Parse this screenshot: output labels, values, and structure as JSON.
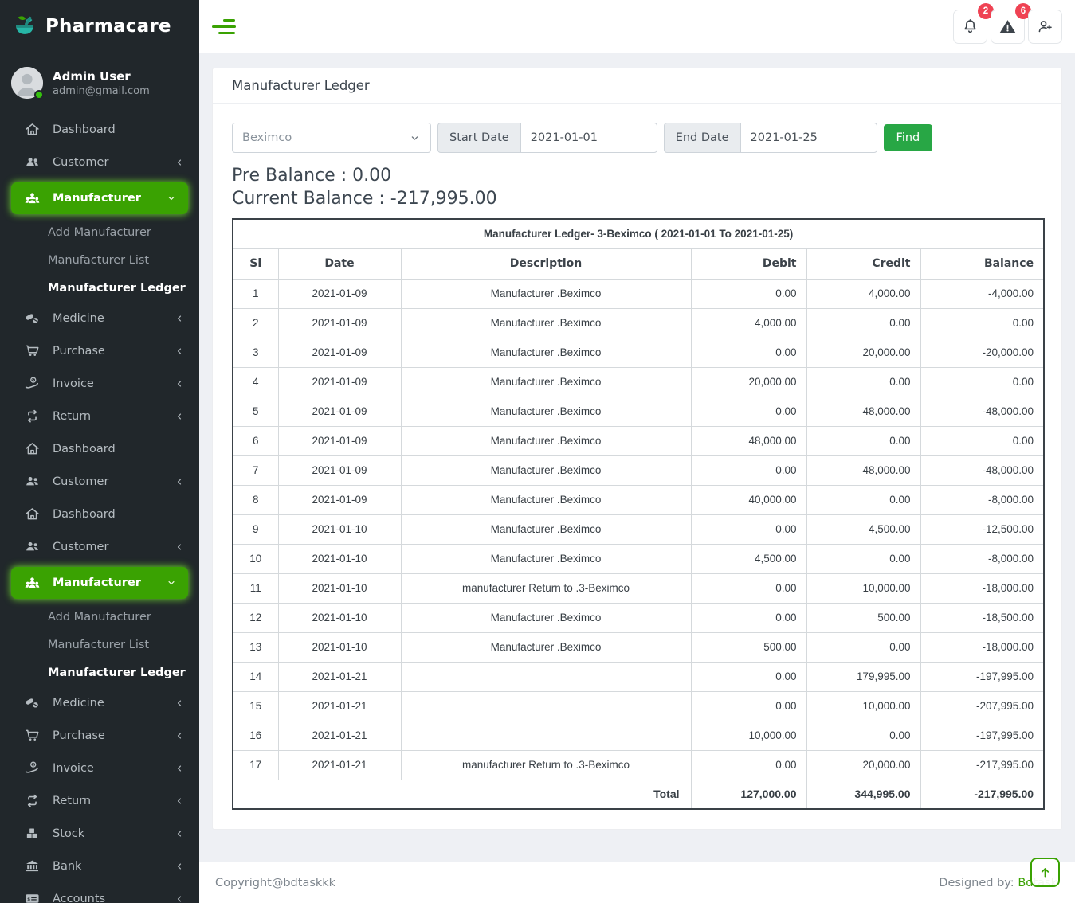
{
  "brand": {
    "name": "Pharmacare"
  },
  "user": {
    "name": "Admin User",
    "email": "admin@gmail.com"
  },
  "topbar": {
    "notification_count": "2",
    "alert_count": "6"
  },
  "colors": {
    "accent_green": "#3aa202",
    "button_green": "#28a745",
    "badge_red": "#ef4253",
    "sidebar_dark": "#21272b"
  },
  "sidebar": {
    "items": [
      {
        "label": "Dashboard",
        "icon": "home"
      },
      {
        "label": "Customer",
        "icon": "users",
        "chevron": "left"
      },
      {
        "label": "Manufacturer",
        "icon": "manufacturer",
        "chevron": "down",
        "active": true
      },
      {
        "label": "Add Manufacturer",
        "sub": true
      },
      {
        "label": "Manufacturer List",
        "sub": true
      },
      {
        "label": "Manufacturer Ledger",
        "sub": true,
        "current": true
      },
      {
        "label": "Medicine",
        "icon": "medicine",
        "chevron": "left"
      },
      {
        "label": "Purchase",
        "icon": "purchase",
        "chevron": "left"
      },
      {
        "label": "Invoice",
        "icon": "invoice",
        "chevron": "left"
      },
      {
        "label": "Return",
        "icon": "return",
        "chevron": "left"
      },
      {
        "label": "Dashboard",
        "icon": "home"
      },
      {
        "label": "Customer",
        "icon": "users",
        "chevron": "left"
      },
      {
        "label": "Dashboard",
        "icon": "home"
      },
      {
        "label": "Customer",
        "icon": "users",
        "chevron": "left"
      },
      {
        "label": "Manufacturer",
        "icon": "manufacturer",
        "chevron": "down",
        "active": true
      },
      {
        "label": "Add Manufacturer",
        "sub": true
      },
      {
        "label": "Manufacturer List",
        "sub": true
      },
      {
        "label": "Manufacturer Ledger",
        "sub": true,
        "current": true
      },
      {
        "label": "Medicine",
        "icon": "medicine",
        "chevron": "left"
      },
      {
        "label": "Purchase",
        "icon": "purchase",
        "chevron": "left"
      },
      {
        "label": "Invoice",
        "icon": "invoice",
        "chevron": "left"
      },
      {
        "label": "Return",
        "icon": "return",
        "chevron": "left"
      },
      {
        "label": "Stock",
        "icon": "stock",
        "chevron": "left"
      },
      {
        "label": "Bank",
        "icon": "bank",
        "chevron": "left"
      },
      {
        "label": "Accounts",
        "icon": "accounts",
        "chevron": "left"
      }
    ]
  },
  "page": {
    "title": "Manufacturer Ledger"
  },
  "filters": {
    "manufacturer": "Beximco",
    "start_label": "Start Date",
    "start_value": "2021-01-01",
    "end_label": "End Date",
    "end_value": "2021-01-25",
    "find_label": "Find"
  },
  "balances": {
    "pre": "Pre Balance : 0.00",
    "current": "Current Balance : -217,995.00"
  },
  "table": {
    "title": "Manufacturer Ledger- 3-Beximco ( 2021-01-01 To 2021-01-25)",
    "headers": [
      "Sl",
      "Date",
      "Description",
      "Debit",
      "Credit",
      "Balance"
    ],
    "rows": [
      [
        "1",
        "2021-01-09",
        "Manufacturer .Beximco",
        "0.00",
        "4,000.00",
        "-4,000.00"
      ],
      [
        "2",
        "2021-01-09",
        "Manufacturer .Beximco",
        "4,000.00",
        "0.00",
        "0.00"
      ],
      [
        "3",
        "2021-01-09",
        "Manufacturer .Beximco",
        "0.00",
        "20,000.00",
        "-20,000.00"
      ],
      [
        "4",
        "2021-01-09",
        "Manufacturer .Beximco",
        "20,000.00",
        "0.00",
        "0.00"
      ],
      [
        "5",
        "2021-01-09",
        "Manufacturer .Beximco",
        "0.00",
        "48,000.00",
        "-48,000.00"
      ],
      [
        "6",
        "2021-01-09",
        "Manufacturer .Beximco",
        "48,000.00",
        "0.00",
        "0.00"
      ],
      [
        "7",
        "2021-01-09",
        "Manufacturer .Beximco",
        "0.00",
        "48,000.00",
        "-48,000.00"
      ],
      [
        "8",
        "2021-01-09",
        "Manufacturer .Beximco",
        "40,000.00",
        "0.00",
        "-8,000.00"
      ],
      [
        "9",
        "2021-01-10",
        "Manufacturer .Beximco",
        "0.00",
        "4,500.00",
        "-12,500.00"
      ],
      [
        "10",
        "2021-01-10",
        "Manufacturer .Beximco",
        "4,500.00",
        "0.00",
        "-8,000.00"
      ],
      [
        "11",
        "2021-01-10",
        "manufacturer Return to .3-Beximco",
        "0.00",
        "10,000.00",
        "-18,000.00"
      ],
      [
        "12",
        "2021-01-10",
        "Manufacturer .Beximco",
        "0.00",
        "500.00",
        "-18,500.00"
      ],
      [
        "13",
        "2021-01-10",
        "Manufacturer .Beximco",
        "500.00",
        "0.00",
        "-18,000.00"
      ],
      [
        "14",
        "2021-01-21",
        "",
        "0.00",
        "179,995.00",
        "-197,995.00"
      ],
      [
        "15",
        "2021-01-21",
        "",
        "0.00",
        "10,000.00",
        "-207,995.00"
      ],
      [
        "16",
        "2021-01-21",
        "",
        "10,000.00",
        "0.00",
        "-197,995.00"
      ],
      [
        "17",
        "2021-01-21",
        "manufacturer Return to .3-Beximco",
        "0.00",
        "20,000.00",
        "-217,995.00"
      ]
    ],
    "total": {
      "label": "Total",
      "debit": "127,000.00",
      "credit": "344,995.00",
      "balance": "-217,995.00"
    }
  },
  "footer": {
    "copyright": "Copyright@bdtaskkk",
    "designed_prefix": "Designed by: ",
    "designed_link": "Bdtask"
  }
}
